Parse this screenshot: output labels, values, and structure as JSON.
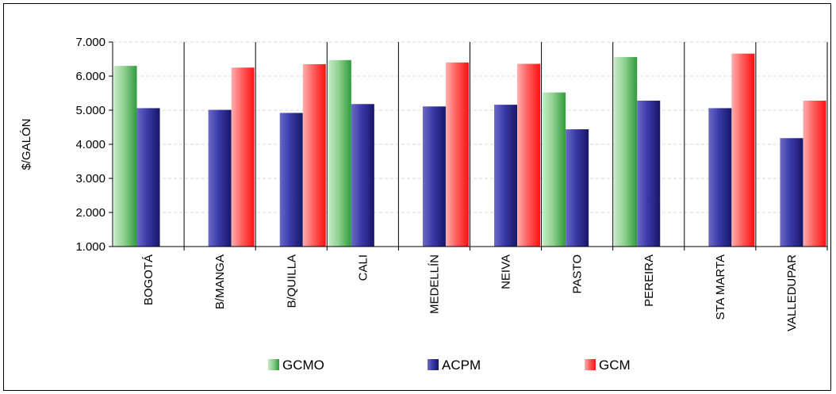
{
  "chart_data": {
    "type": "bar",
    "title": "",
    "xlabel": "",
    "ylabel": "$/GALÓN",
    "ylim": [
      1000,
      7000
    ],
    "yticks": [
      1000,
      2000,
      3000,
      4000,
      5000,
      6000,
      7000
    ],
    "ytick_labels": [
      "1.000",
      "2.000",
      "3.000",
      "4.000",
      "5.000",
      "6.000",
      "7.000"
    ],
    "categories": [
      "BOGOTÁ",
      "B/MANGA",
      "B/QUILLA",
      "CALI",
      "MEDELLÍN",
      "NEIVA",
      "PASTO",
      "PEREIRA",
      "STA MARTA",
      "VALLEDUPAR"
    ],
    "grid": true,
    "legend_position": "bottom",
    "series": [
      {
        "name": "GCMO",
        "color": "#4caf50",
        "values": [
          6300,
          null,
          null,
          6470,
          null,
          null,
          5520,
          6560,
          null,
          null
        ]
      },
      {
        "name": "ACPM",
        "color": "#2e2e8f",
        "values": [
          5060,
          5010,
          4920,
          5180,
          5110,
          5160,
          4440,
          5280,
          5060,
          4180
        ]
      },
      {
        "name": "GCM",
        "color": "#ff2020",
        "values": [
          null,
          6250,
          6350,
          null,
          6400,
          6360,
          null,
          null,
          6660,
          5280
        ]
      }
    ]
  }
}
